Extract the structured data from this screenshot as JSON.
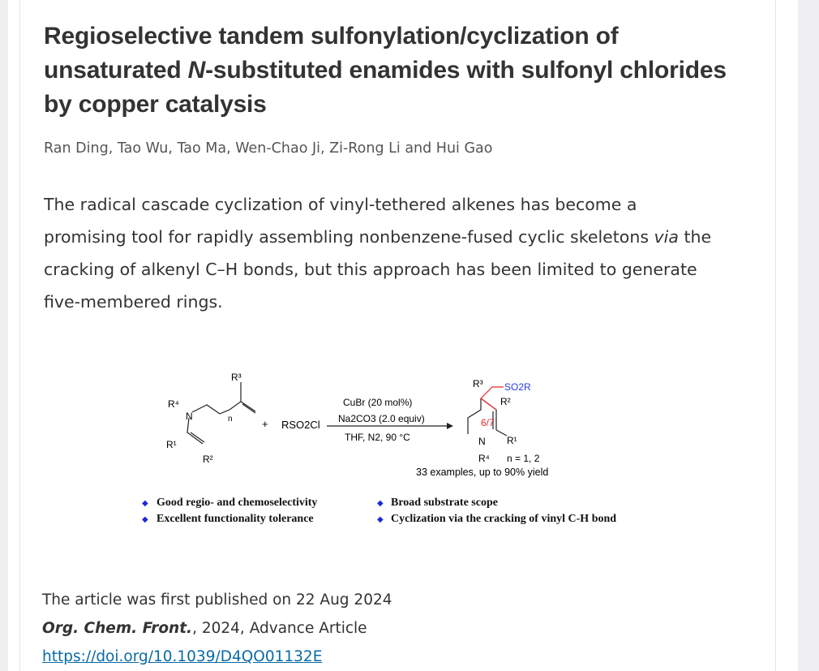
{
  "article": {
    "title_part1": "Regioselective tandem sulfonylation/cyclization of unsaturated ",
    "title_italic": "N",
    "title_part2": "-substituted enamides with sulfonyl chlorides by copper catalysis",
    "authors": "Ran Ding, Tao Wu, Tao Ma, Wen-Chao Ji, Zi-Rong Li and Hui Gao",
    "abstract_part1": "The radical cascade cyclization of vinyl-tethered alkenes has become a promising tool for rapidly assembling nonbenzene-fused cyclic skeletons ",
    "abstract_italic": "via",
    "abstract_part2": " the cracking of alkenyl C–H bonds, but this approach has been limited to generate five-membered rings."
  },
  "scheme": {
    "reagent": "RSO2Cl",
    "conditions": [
      "CuBr (20 mol%)",
      "Na2CO3 (2.0 equiv)",
      "THF, N2, 90 °C"
    ],
    "ring_label": "6/7",
    "product_group": "SO2R",
    "n_values": "n = 1, 2",
    "summary": "33 examples, up to 90% yield",
    "highlights": [
      "Good regio- and chemoselectivity",
      "Excellent functionality tolerance",
      "Broad substrate scope",
      "Cyclization via the cracking of vinyl C-H bond"
    ],
    "colors": {
      "ring": "#e8272a",
      "sulfonyl": "#2b3de0",
      "bullet": "#1a2bd6"
    }
  },
  "meta": {
    "published": "The article was first published on 22 Aug 2024",
    "journal": "Org. Chem. Front.",
    "journal_rest": ", 2024, Advance Article",
    "doi": "https://doi.org/10.1039/D4QO01132E"
  }
}
